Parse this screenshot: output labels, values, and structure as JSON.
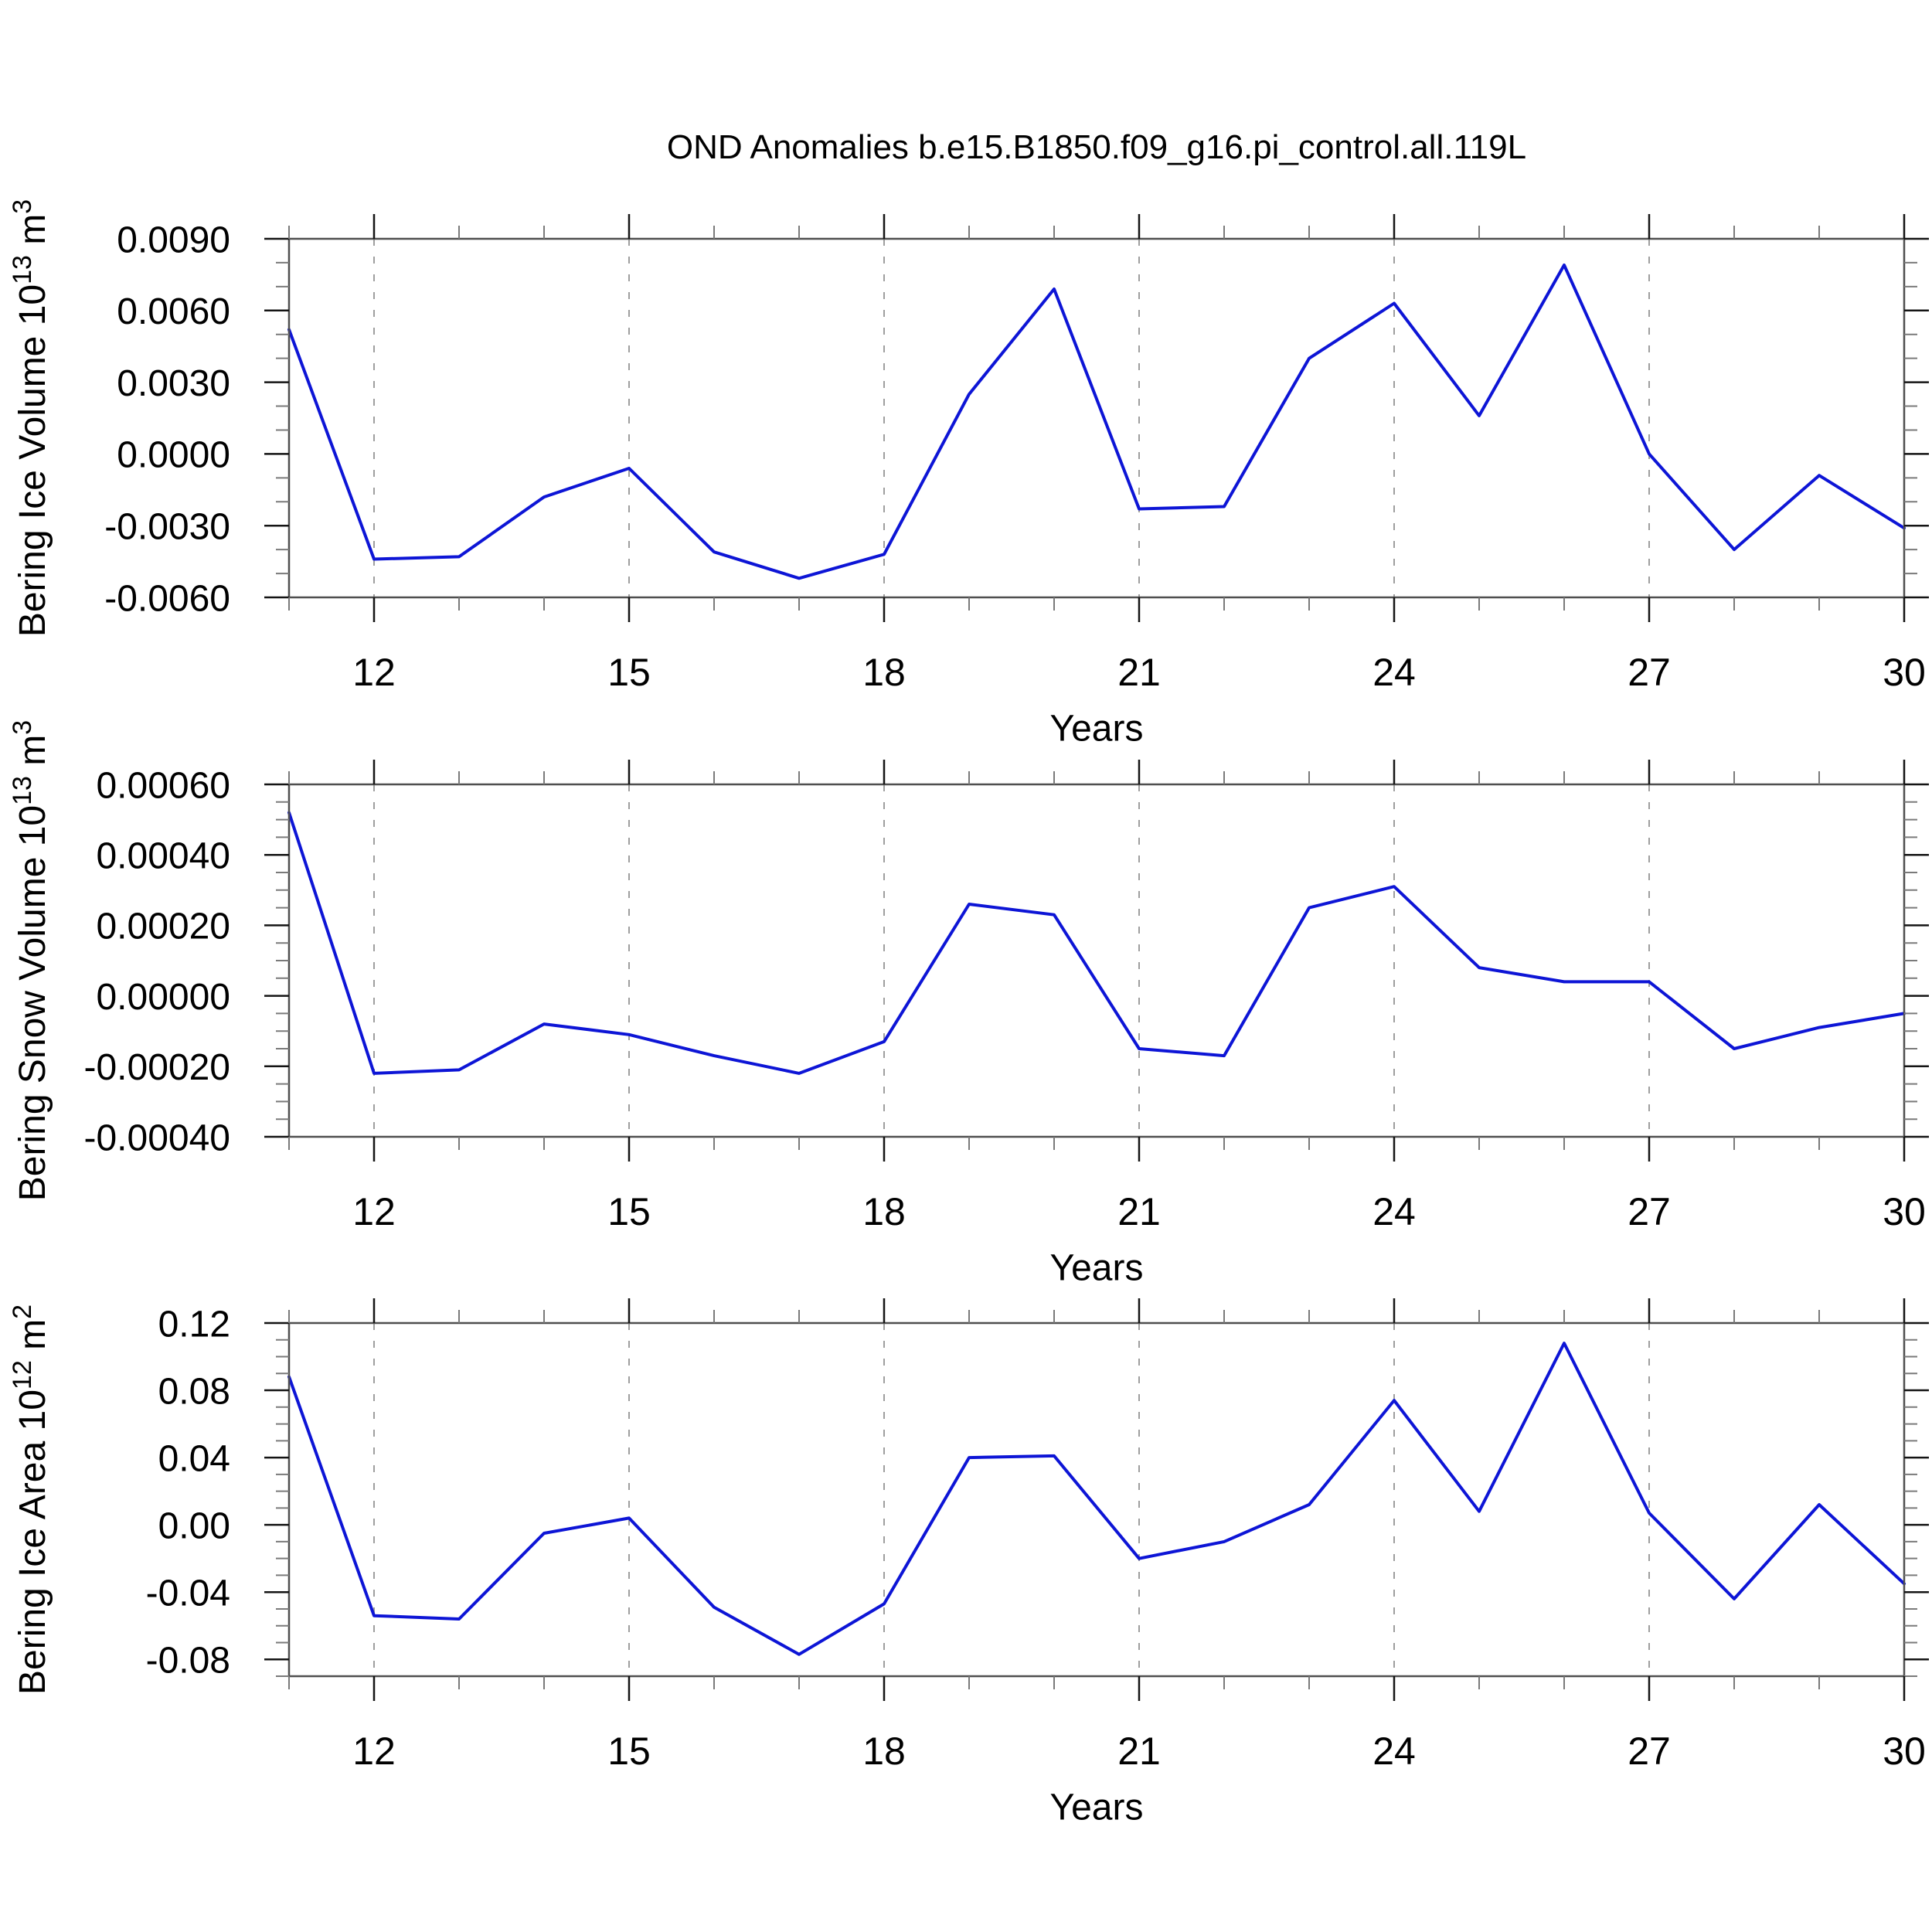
{
  "title": "OND Anomalies b.e15.B1850.f09_g16.pi_control.all.119L",
  "colors": {
    "background": "#ffffff",
    "line": "#0d15d6",
    "frame": "#4f4f4f",
    "tick_major": "#141414",
    "tick_minor": "#7a7a7a",
    "grid": "#9e9e9e",
    "text": "#000000"
  },
  "x_axis": {
    "label": "Years",
    "lim": [
      11,
      30
    ],
    "major_ticks": [
      12,
      15,
      18,
      21,
      24,
      27,
      30
    ],
    "minor_step": 1,
    "grid_lines": [
      12,
      15,
      18,
      21,
      24,
      27
    ]
  },
  "chart_data": [
    {
      "type": "line",
      "series_name": "Bering Ice Volume OND anomaly",
      "ylabel_plain": "Bering Ice Volume 10^13 m^3",
      "ylabel": {
        "segments": [
          {
            "t": "Bering Ice Volume 10"
          },
          {
            "t": "13",
            "sup": true
          },
          {
            "t": " m"
          },
          {
            "t": "3",
            "sup": true
          }
        ]
      },
      "xlabel": "Years",
      "x": [
        11,
        12,
        13,
        14,
        15,
        16,
        17,
        18,
        19,
        20,
        21,
        22,
        23,
        24,
        25,
        26,
        27,
        28,
        29,
        30
      ],
      "values": [
        0.0052,
        -0.0044,
        -0.0043,
        -0.0018,
        -0.0006,
        -0.0041,
        -0.0052,
        -0.0042,
        0.0025,
        0.0069,
        -0.0023,
        -0.0022,
        0.004,
        0.0063,
        0.0016,
        0.0079,
        0.0,
        -0.004,
        -0.0009,
        -0.0031
      ],
      "ylim": [
        -0.006,
        0.009
      ],
      "ytick_values": [
        0.009,
        0.006,
        0.003,
        0.0,
        -0.003,
        -0.006
      ],
      "ytick_labels": [
        "0.0090",
        "0.0060",
        "0.0030",
        "0.0000",
        "-0.0030",
        "-0.0060"
      ],
      "y_minor_step": 0.001,
      "xtick_labels": [
        "12",
        "15",
        "18",
        "21",
        "24",
        "27",
        "30"
      ],
      "grid": "vertical-dashed-only",
      "legend": "none"
    },
    {
      "type": "line",
      "series_name": "Bering Snow Volume OND anomaly",
      "ylabel_plain": "Bering Snow Volume 10^13 m^3",
      "ylabel": {
        "segments": [
          {
            "t": "Bering Snow Volume 10"
          },
          {
            "t": "13",
            "sup": true
          },
          {
            "t": " m"
          },
          {
            "t": "3",
            "sup": true
          }
        ]
      },
      "xlabel": "Years",
      "x": [
        11,
        12,
        13,
        14,
        15,
        16,
        17,
        18,
        19,
        20,
        21,
        22,
        23,
        24,
        25,
        26,
        27,
        28,
        29,
        30
      ],
      "values": [
        0.00052,
        -0.00022,
        -0.00021,
        -8e-05,
        -0.00011,
        -0.00017,
        -0.00022,
        -0.00013,
        0.00026,
        0.00023,
        -0.00015,
        -0.00017,
        0.00025,
        0.00031,
        8e-05,
        4e-05,
        4e-05,
        -0.00015,
        -9e-05,
        -5e-05
      ],
      "ylim": [
        -0.0004,
        0.0006
      ],
      "ytick_values": [
        0.0006,
        0.0004,
        0.0002,
        0.0,
        -0.0002,
        -0.0004
      ],
      "ytick_labels": [
        "0.00060",
        "0.00040",
        "0.00020",
        "0.00000",
        "-0.00020",
        "-0.00040"
      ],
      "y_minor_step": 5e-05,
      "xtick_labels": [
        "12",
        "15",
        "18",
        "21",
        "24",
        "27",
        "30"
      ],
      "grid": "vertical-dashed-only",
      "legend": "none"
    },
    {
      "type": "line",
      "series_name": "Bering Ice Area OND anomaly",
      "ylabel_plain": "Bering Ice Area 10^12 m^2",
      "ylabel": {
        "segments": [
          {
            "t": "Bering Ice Area 10"
          },
          {
            "t": "12",
            "sup": true
          },
          {
            "t": " m"
          },
          {
            "t": "2",
            "sup": true
          }
        ]
      },
      "xlabel": "Years",
      "x": [
        11,
        12,
        13,
        14,
        15,
        16,
        17,
        18,
        19,
        20,
        21,
        22,
        23,
        24,
        25,
        26,
        27,
        28,
        29,
        30
      ],
      "values": [
        0.088,
        -0.054,
        -0.056,
        -0.005,
        0.004,
        -0.049,
        -0.077,
        -0.047,
        0.04,
        0.041,
        -0.02,
        -0.01,
        0.012,
        0.074,
        0.008,
        0.108,
        0.007,
        -0.044,
        0.012,
        -0.035
      ],
      "ylim": [
        -0.09,
        0.12
      ],
      "ytick_values": [
        0.12,
        0.08,
        0.04,
        0.0,
        -0.04,
        -0.08
      ],
      "ytick_labels": [
        "0.12",
        "0.08",
        "0.04",
        "0.00",
        "-0.04",
        "-0.08"
      ],
      "y_minor_step": 0.01,
      "xtick_labels": [
        "12",
        "15",
        "18",
        "21",
        "24",
        "27",
        "30"
      ],
      "grid": "vertical-dashed-only",
      "legend": "none"
    }
  ]
}
